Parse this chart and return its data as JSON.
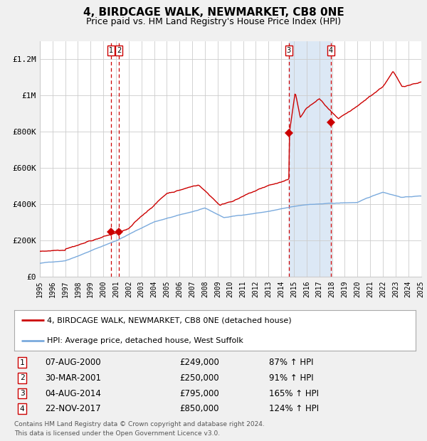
{
  "title": "4, BIRDCAGE WALK, NEWMARKET, CB8 0NE",
  "subtitle": "Price paid vs. HM Land Registry's House Price Index (HPI)",
  "footer1": "Contains HM Land Registry data © Crown copyright and database right 2024.",
  "footer2": "This data is licensed under the Open Government Licence v3.0.",
  "legend_red": "4, BIRDCAGE WALK, NEWMARKET, CB8 0NE (detached house)",
  "legend_blue": "HPI: Average price, detached house, West Suffolk",
  "transactions": [
    {
      "num": 1,
      "date": "07-AUG-2000",
      "price": "£249,000",
      "pct": "87% ↑ HPI"
    },
    {
      "num": 2,
      "date": "30-MAR-2001",
      "price": "£250,000",
      "pct": "91% ↑ HPI"
    },
    {
      "num": 3,
      "date": "04-AUG-2014",
      "price": "£795,000",
      "pct": "165% ↑ HPI"
    },
    {
      "num": 4,
      "date": "22-NOV-2017",
      "price": "£850,000",
      "pct": "124% ↑ HPI"
    }
  ],
  "year_start": 1995,
  "year_end": 2025,
  "ylim_max": 1300000,
  "red_color": "#cc0000",
  "blue_color": "#7aaadd",
  "bg_color": "#f0f0f0",
  "plot_bg": "#ffffff",
  "shade_color": "#dce8f5",
  "grid_color": "#cccccc",
  "trans_years": [
    2000.6,
    2001.24,
    2014.6,
    2017.9
  ],
  "trans_vals": [
    249000,
    250000,
    795000,
    850000
  ]
}
